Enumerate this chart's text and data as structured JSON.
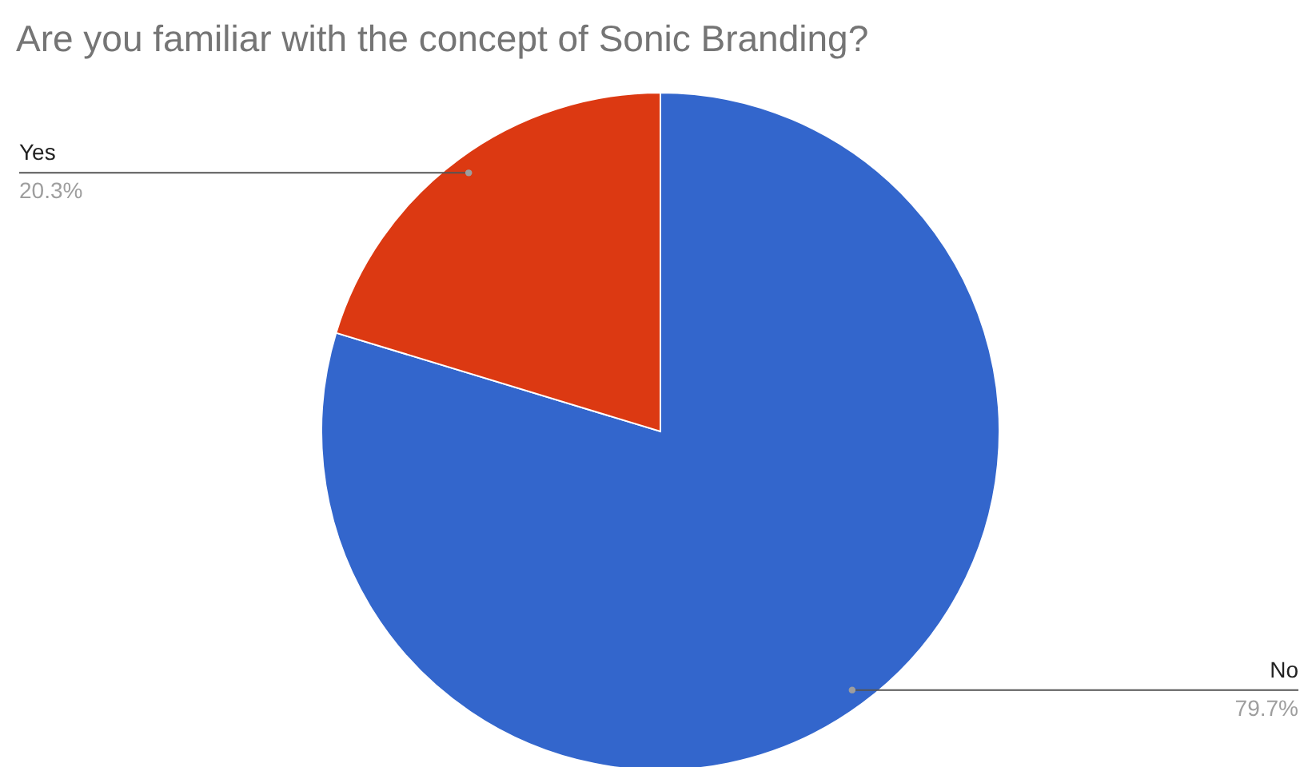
{
  "chart_data": {
    "type": "pie",
    "title": "Are you familiar with the concept of Sonic Branding?",
    "categories": [
      "No",
      "Yes"
    ],
    "values": [
      79.7,
      20.3
    ],
    "colors": [
      "#3366cc",
      "#dc3912"
    ],
    "value_labels": [
      "79.7%",
      "20.3%"
    ]
  }
}
